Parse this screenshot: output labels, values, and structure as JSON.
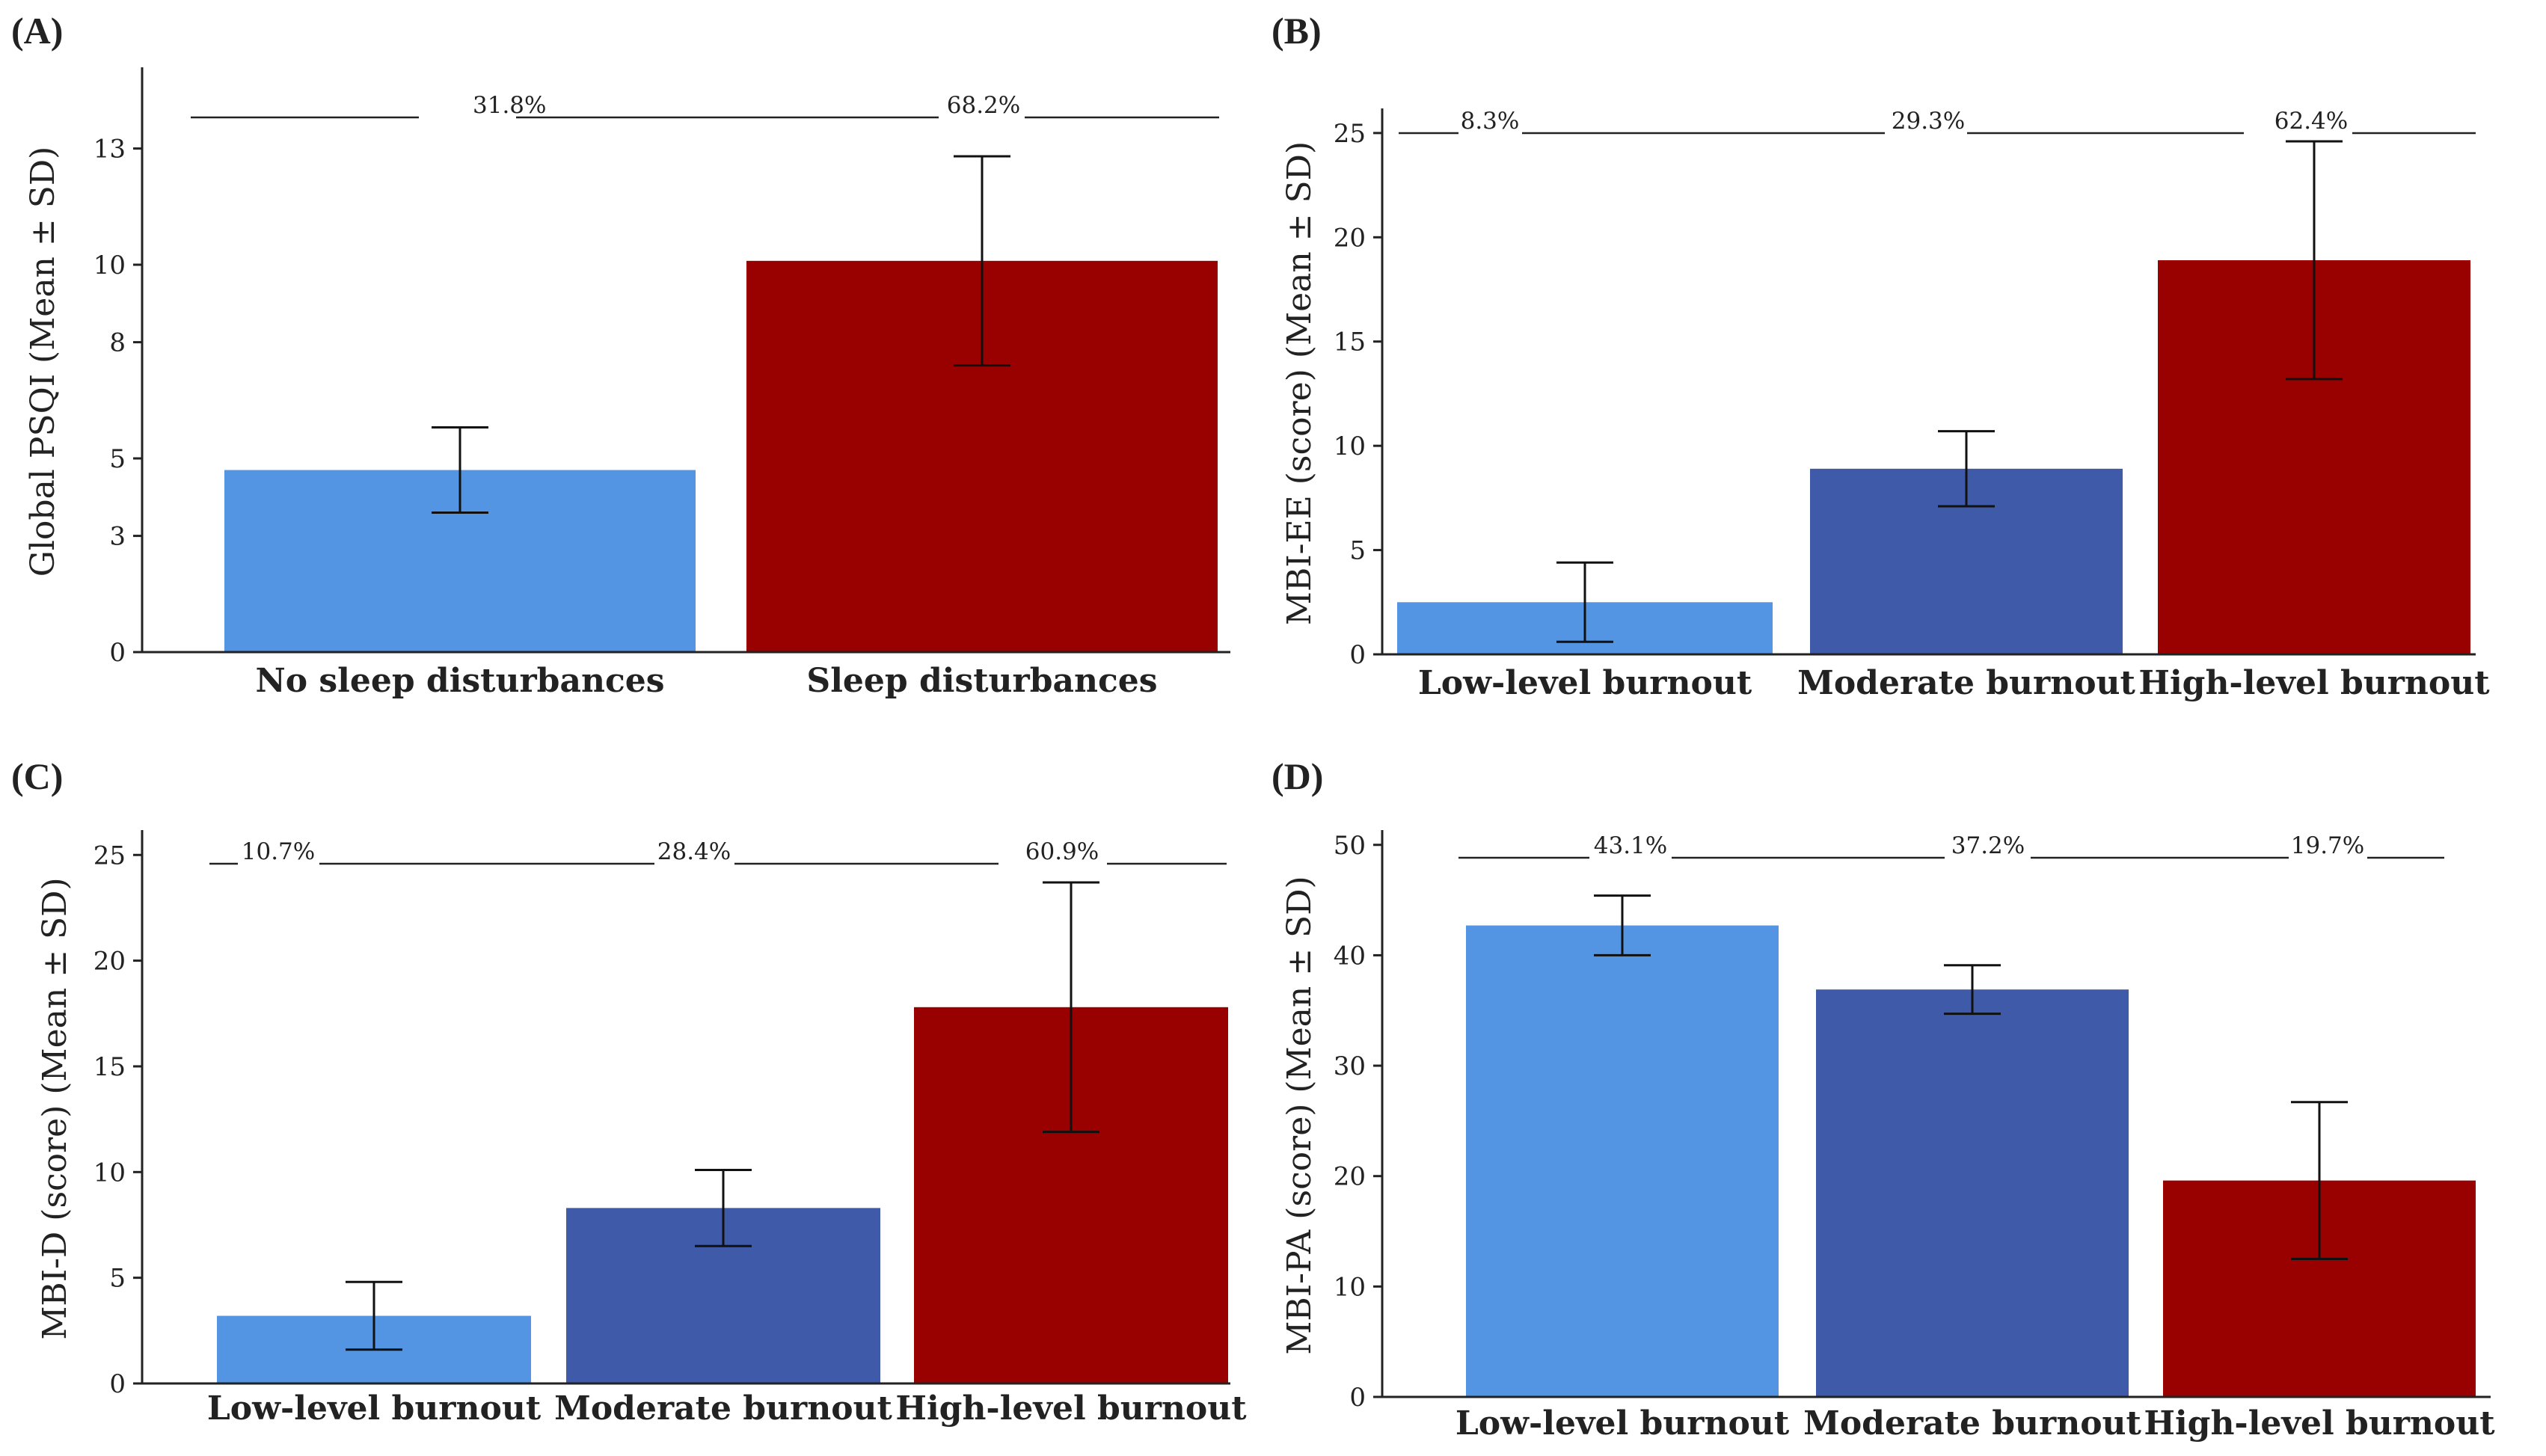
{
  "chart_data": [
    {
      "panel": "(A)",
      "type": "bar",
      "ylabel": "Global PSQI (Mean ± SD)",
      "ylim": [
        0,
        15
      ],
      "ytick_values": [
        0,
        3,
        5,
        8,
        10,
        13
      ],
      "yticks": [
        "0",
        "3",
        "5",
        "8",
        "10",
        "13"
      ],
      "categories": [
        "No sleep disturbances",
        "Sleep disturbances"
      ],
      "values": [
        4.7,
        10.1
      ],
      "sd": [
        1.1,
        2.7
      ],
      "percentages": [
        "31.8%",
        "68.2%"
      ],
      "colors": [
        "#5495e3",
        "#990000"
      ]
    },
    {
      "panel": "(B)",
      "type": "bar",
      "ylabel": "MBI-EE (score) (Mean ± SD)",
      "ylim": [
        0,
        26
      ],
      "ytick_values": [
        0,
        5,
        10,
        15,
        20,
        25
      ],
      "yticks": [
        "0",
        "5",
        "10",
        "15",
        "20",
        "25"
      ],
      "categories": [
        "Low-level burnout",
        "Moderate burnout",
        "High-level burnout"
      ],
      "values": [
        2.5,
        8.9,
        18.9
      ],
      "sd": [
        1.9,
        1.8,
        5.7
      ],
      "percentages": [
        "8.3%",
        "29.3%",
        "62.4%"
      ],
      "colors": [
        "#5495e3",
        "#3f5aa8",
        "#990000"
      ]
    },
    {
      "panel": "(C)",
      "type": "bar",
      "ylabel": "MBI-D (score) (Mean ± SD)",
      "ylim": [
        0,
        26
      ],
      "ytick_values": [
        0,
        5,
        10,
        15,
        20,
        25
      ],
      "yticks": [
        "0",
        "5",
        "10",
        "15",
        "20",
        "25"
      ],
      "categories": [
        "Low-level burnout",
        "Moderate burnout",
        "High-level burnout"
      ],
      "values": [
        3.2,
        8.3,
        17.8
      ],
      "sd": [
        1.6,
        1.8,
        5.9
      ],
      "percentages": [
        "10.7%",
        "28.4%",
        "60.9%"
      ],
      "colors": [
        "#5495e3",
        "#3f5aa8",
        "#990000"
      ]
    },
    {
      "panel": "(D)",
      "type": "bar",
      "ylabel": "MBI-PA (score) (Mean ± SD)",
      "ylim": [
        0,
        51
      ],
      "ytick_values": [
        0,
        10,
        20,
        30,
        40,
        50
      ],
      "yticks": [
        "0",
        "10",
        "20",
        "30",
        "40",
        "50"
      ],
      "categories": [
        "Low-level burnout",
        "Moderate burnout",
        "High-level burnout"
      ],
      "values": [
        42.7,
        36.9,
        19.6
      ],
      "sd": [
        2.7,
        2.2,
        7.1
      ],
      "percentages": [
        "43.1%",
        "37.2%",
        "19.7%"
      ],
      "colors": [
        "#5495e3",
        "#3f5aa8",
        "#990000"
      ]
    }
  ]
}
